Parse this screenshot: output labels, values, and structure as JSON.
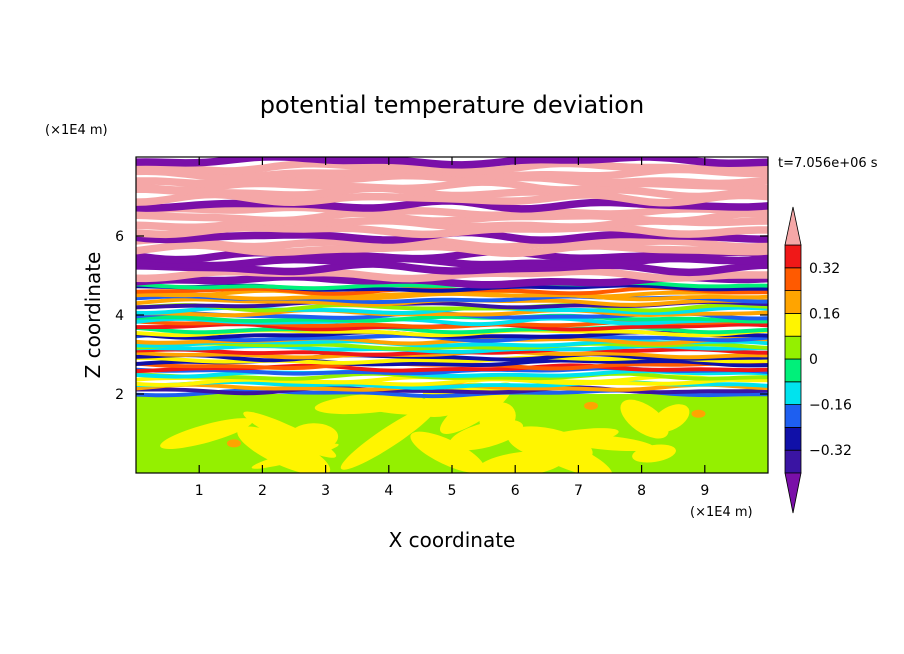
{
  "chart_data": {
    "type": "heatmap",
    "title": "potential temperature deviation",
    "xlabel": "X coordinate",
    "ylabel": "Z coordinate",
    "x_unit": "(×1E4 m)",
    "y_unit": "(×1E4 m)",
    "time_label": "t=7.056e+06 s",
    "xlim": [
      0,
      10
    ],
    "ylim": [
      0,
      8
    ],
    "x_ticks": [
      "1",
      "2",
      "3",
      "4",
      "5",
      "6",
      "7",
      "8",
      "9"
    ],
    "x_tick_values": [
      1,
      2,
      3,
      4,
      5,
      6,
      7,
      8,
      9
    ],
    "y_ticks": [
      "2",
      "4",
      "6"
    ],
    "y_tick_values": [
      2,
      4,
      6
    ],
    "colorbar": {
      "levels": [
        -0.4,
        -0.32,
        -0.24,
        -0.16,
        -0.08,
        0,
        0.08,
        0.16,
        0.24,
        0.32,
        0.4
      ],
      "labels": [
        "0.32",
        "0.16",
        "0",
        "−0.16",
        "−0.32"
      ],
      "label_values": [
        0.32,
        0.16,
        0,
        -0.16,
        -0.32
      ],
      "colors": [
        "#7a0fa8",
        "#3a14a3",
        "#1010a8",
        "#1e5ff0",
        "#00e3ee",
        "#00f07a",
        "#94f000",
        "#fff500",
        "#ffa400",
        "#ff5a00",
        "#f01818",
        "#f5a7a7"
      ],
      "extend": "both"
    },
    "layers": [
      {
        "z_range": [
          0,
          2.0
        ],
        "value": 0.0,
        "description_color": "#00f07a",
        "blob_value": 0.08,
        "hot_spot_value": 0.16
      },
      {
        "z_range": [
          2.0,
          4.8
        ],
        "value": "mixed",
        "band_values": [
          -0.36,
          -0.28,
          -0.2,
          -0.12,
          -0.04,
          0.04,
          0.12,
          0.2,
          0.28,
          0.36
        ]
      },
      {
        "z_range": [
          4.8,
          8.0
        ],
        "value": "mixed",
        "band_values": [
          0.44,
          -0.44,
          0.44,
          -0.44,
          0.44,
          -0.44,
          0.44,
          -0.44,
          0.44
        ]
      }
    ]
  }
}
